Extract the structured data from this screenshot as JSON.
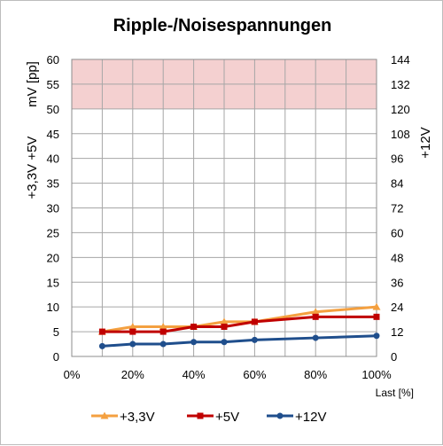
{
  "chart_data": {
    "type": "line",
    "title": "Ripple-/Noisespannungen",
    "xlabel": "Last [%]",
    "ylabel_left_top": "mV [pp]",
    "ylabel_left_bottom": "+3,3V +5V",
    "ylabel_right": "+12V",
    "xlim": [
      0,
      100
    ],
    "ylim_left": [
      0,
      60
    ],
    "ylim_right": [
      0,
      144
    ],
    "x_ticks": [
      "0%",
      "20%",
      "40%",
      "60%",
      "80%",
      "100%"
    ],
    "y_left_ticks": [
      0,
      5,
      10,
      15,
      20,
      25,
      30,
      35,
      40,
      45,
      50,
      55,
      60
    ],
    "y_right_ticks": [
      0,
      12,
      24,
      36,
      48,
      60,
      72,
      84,
      96,
      108,
      120,
      132,
      144
    ],
    "limit_band_left": [
      50,
      60
    ],
    "limit_band_color": "#f4d0d0",
    "grid": true,
    "legend_position": "bottom",
    "x": [
      10,
      20,
      30,
      40,
      50,
      60,
      80,
      100
    ],
    "series": [
      {
        "name": "+3,3V",
        "axis": "left",
        "color": "#f4a040",
        "marker": "triangle",
        "values": [
          5,
          6,
          6,
          6,
          7,
          7,
          9,
          10
        ]
      },
      {
        "name": "+5V",
        "axis": "left",
        "color": "#c00000",
        "marker": "square",
        "values": [
          5,
          5,
          5,
          6,
          6,
          7,
          8,
          8
        ]
      },
      {
        "name": "+12V",
        "axis": "right",
        "color": "#1f4e8c",
        "marker": "circle",
        "values": [
          5,
          6,
          6,
          7,
          7,
          8,
          9,
          10
        ]
      }
    ]
  }
}
